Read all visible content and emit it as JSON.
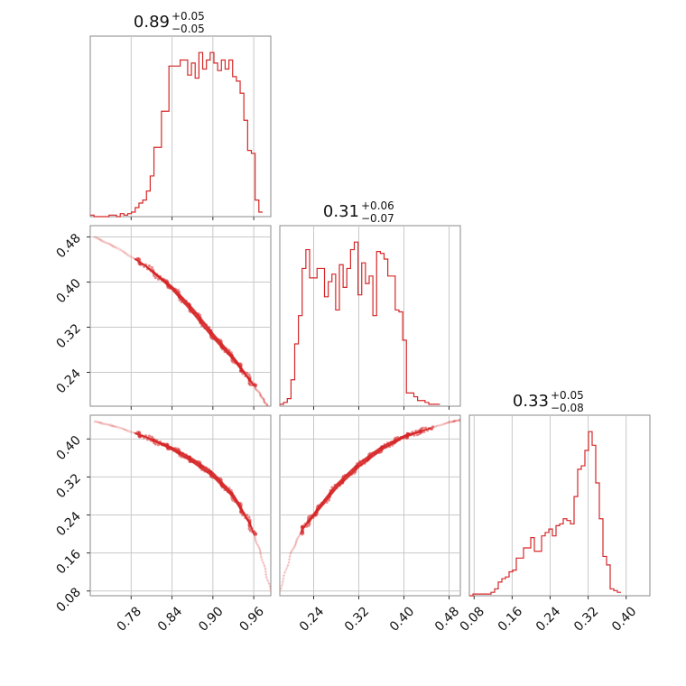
{
  "chart_data": {
    "type": "corner",
    "line_color": "#d62728",
    "grid": true,
    "parameters": [
      {
        "title": {
          "value": "0.89",
          "upper": "+0.05",
          "lower": "−0.05"
        },
        "range": [
          0.72,
          0.985
        ],
        "ticks": [
          0.78,
          0.84,
          0.9,
          0.96
        ],
        "tick_labels": [
          "0.78",
          "0.84",
          "0.90",
          "0.96"
        ],
        "histogram": {
          "start": 0.72,
          "bin_width": 0.0055,
          "counts": [
            1,
            0,
            0,
            0,
            0,
            1,
            1,
            0,
            2,
            1,
            2,
            3,
            6,
            9,
            11,
            17,
            27,
            46,
            46,
            70,
            70,
            100,
            100,
            100,
            104,
            104,
            94,
            102,
            92,
            109,
            98,
            104,
            109,
            102,
            97,
            104,
            98,
            104,
            93,
            90,
            82,
            64,
            44,
            42,
            11,
            3
          ]
        }
      },
      {
        "title": {
          "value": "0.31",
          "upper": "+0.06",
          "lower": "−0.07"
        },
        "range": [
          0.18,
          0.5
        ],
        "ticks": [
          0.24,
          0.32,
          0.4,
          0.48
        ],
        "tick_labels": [
          "0.24",
          "0.32",
          "0.40",
          "0.48"
        ],
        "histogram": {
          "start": 0.18,
          "bin_width": 0.0066,
          "counts": [
            1,
            2,
            4,
            14,
            33,
            48,
            73,
            83,
            68,
            68,
            73,
            73,
            58,
            66,
            70,
            51,
            75,
            63,
            73,
            83,
            87,
            59,
            76,
            65,
            69,
            48,
            82,
            81,
            78,
            69,
            69,
            51,
            50,
            35,
            7,
            7,
            5,
            3,
            3,
            2,
            1,
            1,
            1
          ]
        }
      },
      {
        "title": {
          "value": "0.33",
          "upper": "+0.05",
          "lower": "−0.08"
        },
        "range": [
          0.07,
          0.45
        ],
        "ticks": [
          0.08,
          0.16,
          0.24,
          0.32,
          0.4
        ],
        "tick_labels": [
          "0.08",
          "0.16",
          "0.24",
          "0.32",
          "0.40"
        ],
        "histogram": {
          "start": 0.07,
          "bin_width": 0.0076,
          "counts": [
            0,
            1,
            1,
            1,
            1,
            1,
            2,
            4,
            8,
            10,
            11,
            14,
            15,
            22,
            22,
            28,
            28,
            34,
            26,
            26,
            35,
            37,
            39,
            35,
            41,
            42,
            45,
            44,
            42,
            58,
            74,
            76,
            85,
            96,
            88,
            66,
            45,
            23,
            18,
            4,
            3,
            2
          ]
        }
      }
    ],
    "pair_curves": [
      {
        "x_param": 0,
        "y_param": 1,
        "points": [
          [
            0.726,
            0.48
          ],
          [
            0.76,
            0.46
          ],
          [
            0.8,
            0.43
          ],
          [
            0.84,
            0.39
          ],
          [
            0.87,
            0.35
          ],
          [
            0.9,
            0.305
          ],
          [
            0.93,
            0.265
          ],
          [
            0.955,
            0.225
          ],
          [
            0.97,
            0.2
          ],
          [
            0.98,
            0.18
          ]
        ]
      },
      {
        "x_param": 0,
        "y_param": 2,
        "points": [
          [
            0.726,
            0.437
          ],
          [
            0.76,
            0.425
          ],
          [
            0.8,
            0.405
          ],
          [
            0.84,
            0.38
          ],
          [
            0.87,
            0.355
          ],
          [
            0.9,
            0.325
          ],
          [
            0.93,
            0.28
          ],
          [
            0.955,
            0.22
          ],
          [
            0.97,
            0.16
          ],
          [
            0.985,
            0.08
          ]
        ]
      },
      {
        "x_param": 1,
        "y_param": 2,
        "points": [
          [
            0.18,
            0.08
          ],
          [
            0.2,
            0.16
          ],
          [
            0.22,
            0.21
          ],
          [
            0.24,
            0.24
          ],
          [
            0.28,
            0.3
          ],
          [
            0.32,
            0.345
          ],
          [
            0.36,
            0.38
          ],
          [
            0.4,
            0.405
          ],
          [
            0.44,
            0.42
          ],
          [
            0.48,
            0.435
          ],
          [
            0.5,
            0.44
          ]
        ]
      }
    ]
  }
}
